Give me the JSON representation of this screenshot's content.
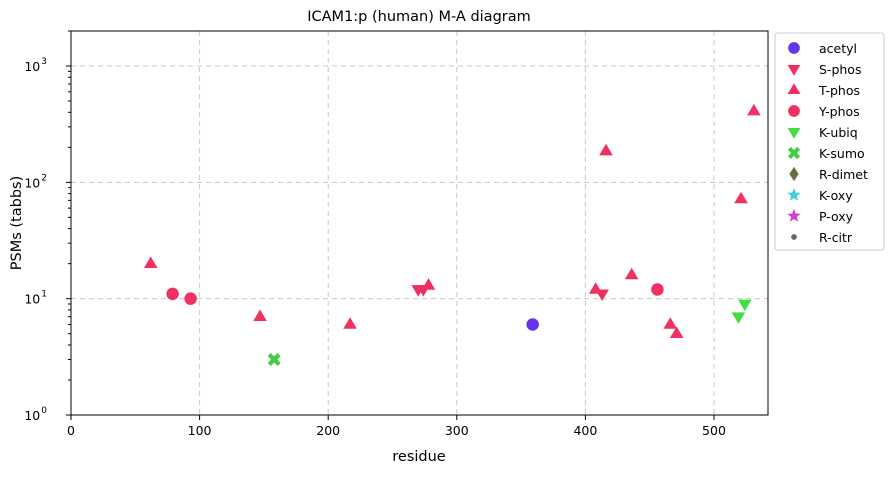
{
  "chart_data": {
    "type": "scatter",
    "title": "ICAM1:p (human) M-A diagram",
    "xlabel": "residue",
    "ylabel": "PSMs (tabbs)",
    "xlim": [
      0,
      542
    ],
    "ylim": [
      1,
      2000
    ],
    "yscale": "log",
    "grid": true,
    "legend_position": "outside-right",
    "x_ticks": [
      0,
      100,
      200,
      300,
      400,
      500
    ],
    "y_ticks": [
      {
        "value": 1,
        "base": "10",
        "exp": "0"
      },
      {
        "value": 10,
        "base": "10",
        "exp": "1"
      },
      {
        "value": 100,
        "base": "10",
        "exp": "2"
      },
      {
        "value": 1000,
        "base": "10",
        "exp": "3"
      }
    ],
    "series": [
      {
        "name": "acetyl",
        "marker": "circle",
        "color": "#6633ee",
        "points": [
          [
            359,
            6
          ]
        ]
      },
      {
        "name": "S-phos",
        "marker": "triangle-down",
        "color": "#f03060",
        "points": [
          [
            270,
            12
          ],
          [
            274,
            12
          ],
          [
            413,
            11
          ]
        ]
      },
      {
        "name": "T-phos",
        "marker": "triangle-up",
        "color": "#f03060",
        "points": [
          [
            62,
            20
          ],
          [
            147,
            7
          ],
          [
            217,
            6
          ],
          [
            278,
            13
          ],
          [
            408,
            12
          ],
          [
            416,
            186
          ],
          [
            436,
            16
          ],
          [
            466,
            6
          ],
          [
            471,
            5
          ],
          [
            521,
            72
          ],
          [
            531,
            410
          ]
        ]
      },
      {
        "name": "Y-phos",
        "marker": "circle",
        "color": "#f03060",
        "points": [
          [
            79,
            11
          ],
          [
            93,
            10
          ],
          [
            456,
            12
          ]
        ]
      },
      {
        "name": "K-ubiq",
        "marker": "triangle-down",
        "color": "#44dd44",
        "points": [
          [
            519,
            7
          ],
          [
            524,
            9
          ]
        ]
      },
      {
        "name": "K-sumo",
        "marker": "x",
        "color": "#44cc44",
        "points": [
          [
            158,
            3
          ]
        ]
      },
      {
        "name": "R-dimet",
        "marker": "diamond",
        "color": "#6b6b40",
        "points": []
      },
      {
        "name": "K-oxy",
        "marker": "star",
        "color": "#44ccdd",
        "points": []
      },
      {
        "name": "P-oxy",
        "marker": "star",
        "color": "#cc44cc",
        "points": []
      },
      {
        "name": "R-citr",
        "marker": "dot",
        "color": "#666666",
        "points": []
      }
    ]
  }
}
